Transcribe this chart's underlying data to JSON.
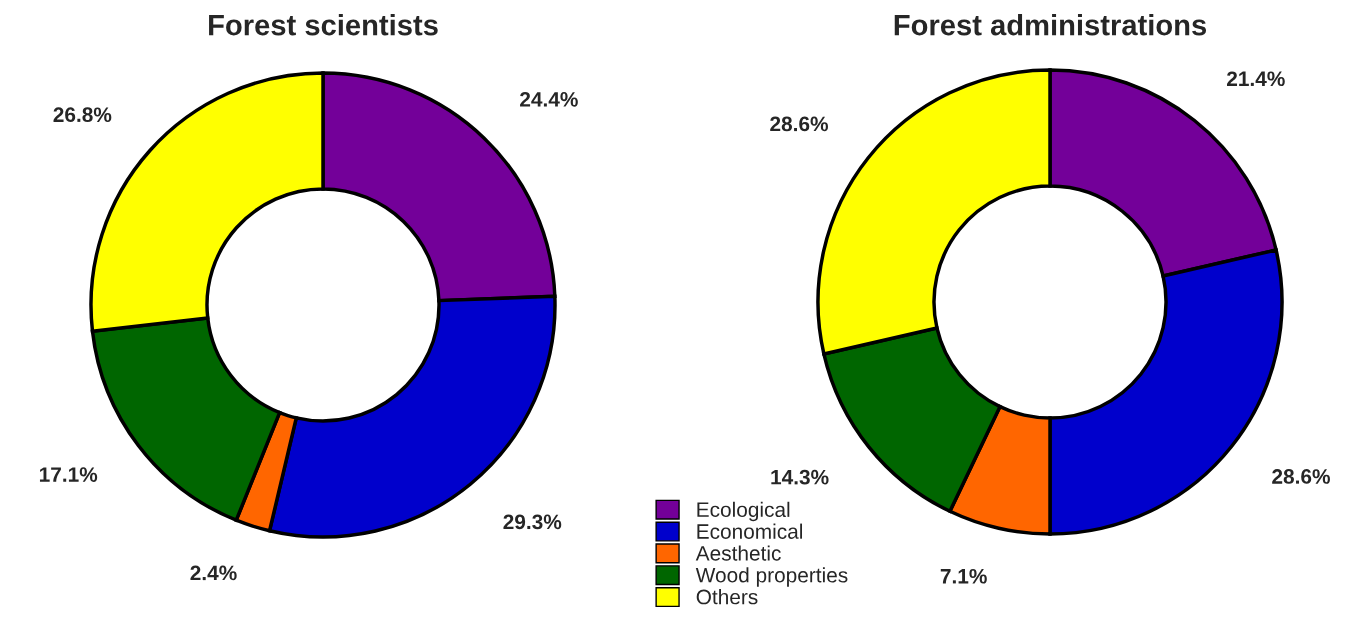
{
  "chart_data": [
    {
      "type": "donut",
      "title": "Forest scientists",
      "categories": [
        "Ecological",
        "Economical",
        "Aesthetic",
        "Wood properties",
        "Others"
      ],
      "values": [
        24.4,
        29.3,
        2.4,
        17.1,
        26.8
      ],
      "colors": [
        "#730099",
        "#0000cc",
        "#ff6600",
        "#006600",
        "#ffff00"
      ],
      "value_labels": [
        "24.4%",
        "29.3%",
        "2.4%",
        "17.1%",
        "26.8%"
      ],
      "legend": "bottom right"
    },
    {
      "type": "donut",
      "title": "Forest administrations",
      "categories": [
        null,
        null,
        null,
        null,
        null
      ],
      "values": [
        21.4,
        28.6,
        7.1,
        14.3,
        28.6
      ],
      "colors": [
        "#730099",
        "#0000cc",
        "#ff6600",
        "#006600",
        "#ffff00"
      ],
      "value_labels": [
        "21.4%",
        "28.6%",
        "7.1%",
        "14.3%",
        "28.6%"
      ]
    }
  ]
}
